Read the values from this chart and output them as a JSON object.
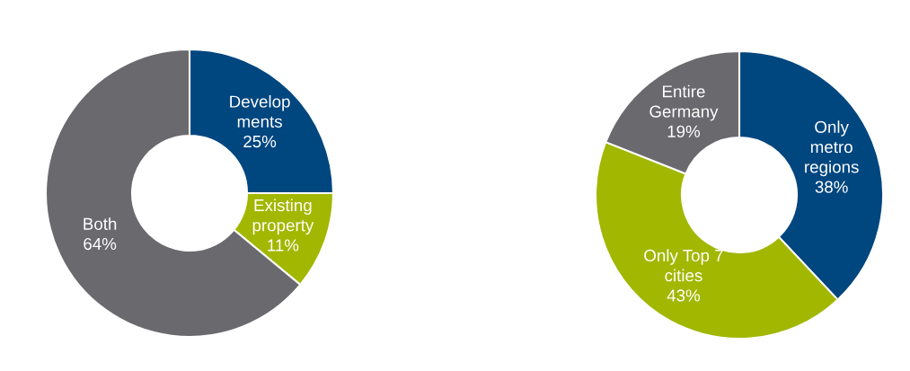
{
  "chart_data": [
    {
      "type": "donut",
      "categories": [
        "Develop\nments",
        "Existing\nproperty",
        "Both"
      ],
      "values": [
        25,
        11,
        64
      ],
      "value_labels": [
        "25%",
        "11%",
        "64%"
      ],
      "colors": [
        "#00467f",
        "#a2b700",
        "#6a696e"
      ]
    },
    {
      "type": "donut",
      "categories": [
        "Only\nmetro\nregions",
        "Only Top 7\ncities",
        "Entire\nGermany"
      ],
      "values": [
        38,
        43,
        19
      ],
      "value_labels": [
        "38%",
        "43%",
        "19%"
      ],
      "colors": [
        "#00467f",
        "#a2b700",
        "#6a696e"
      ]
    }
  ]
}
